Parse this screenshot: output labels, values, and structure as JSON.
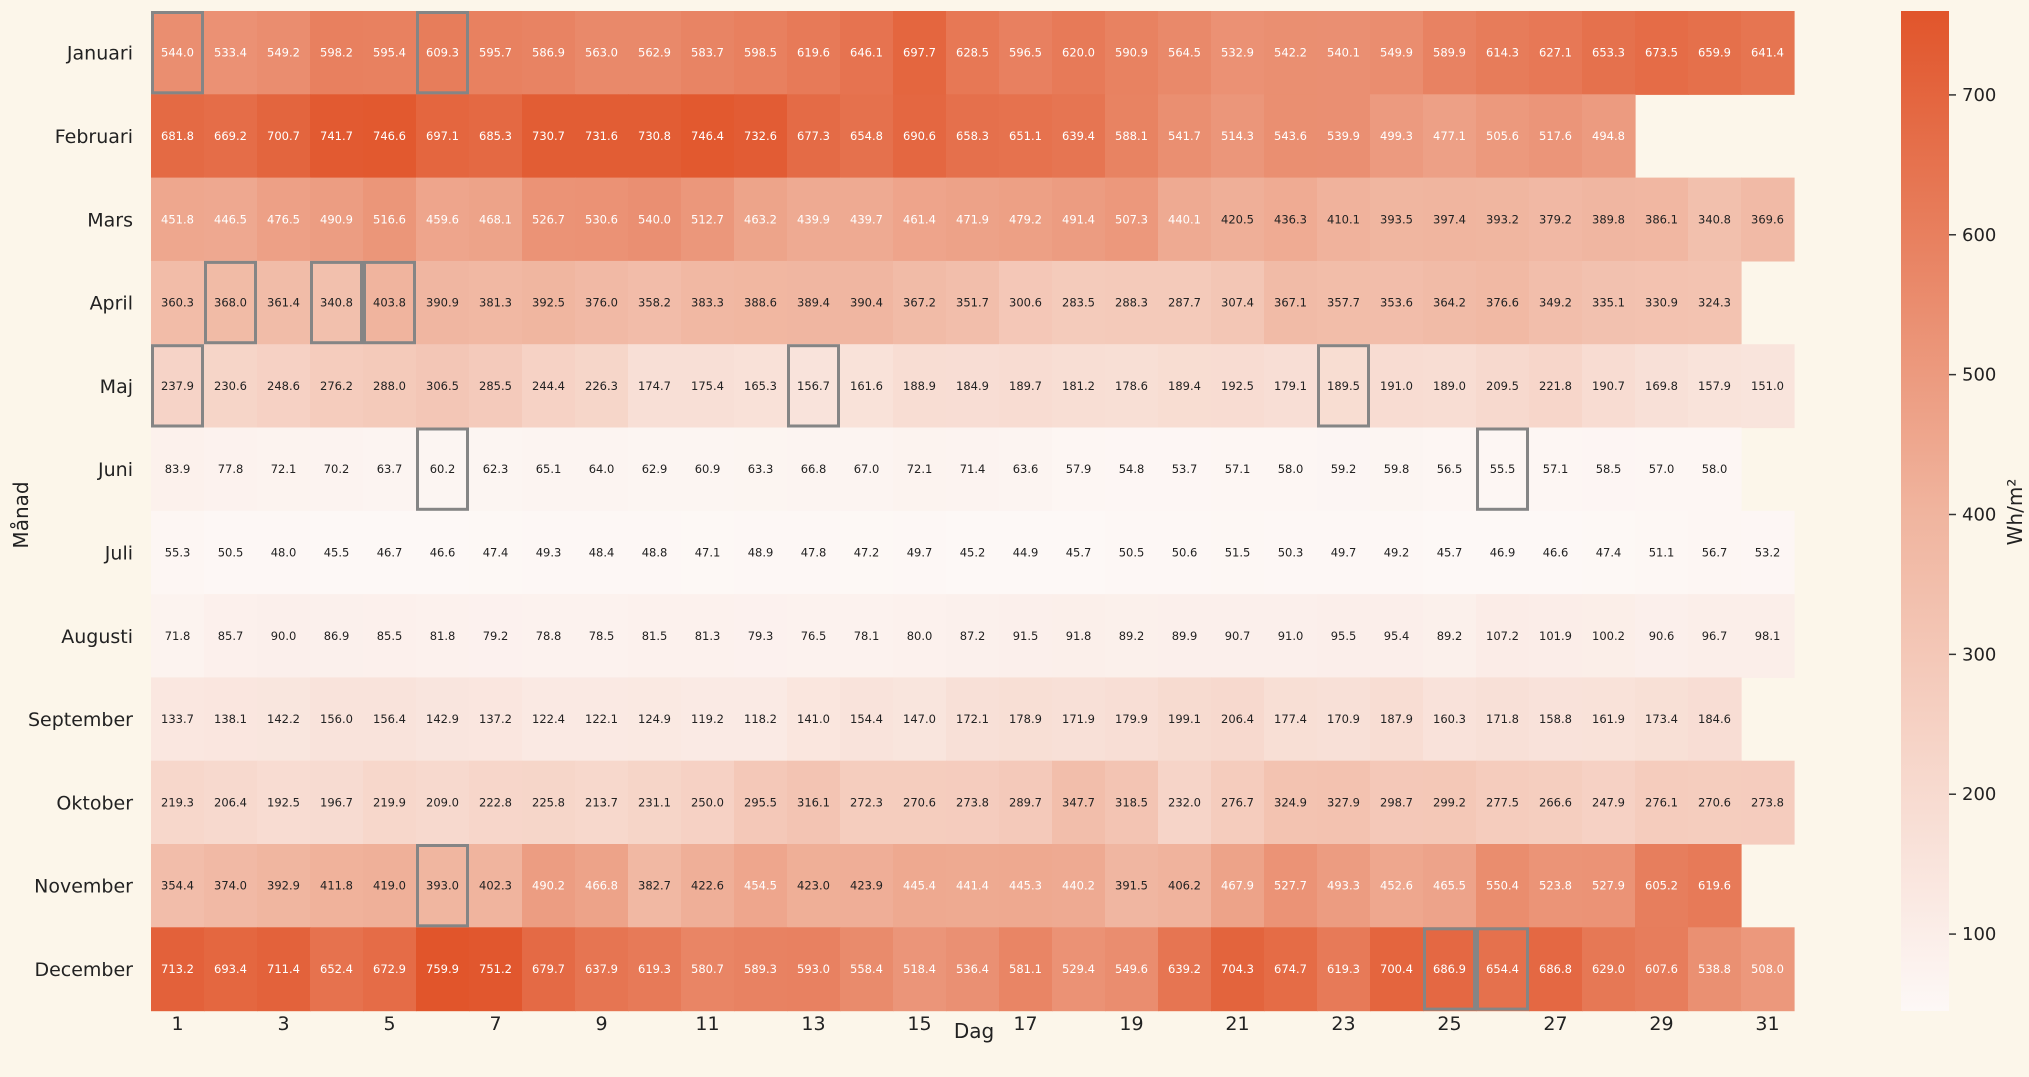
{
  "chart_data": {
    "type": "heatmap",
    "xlabel": "Dag",
    "ylabel": "Månad",
    "colorbar_label": "Wh/m²",
    "colorbar_range": [
      45,
      760
    ],
    "colorbar_ticks": [
      100,
      200,
      300,
      400,
      500,
      600,
      700
    ],
    "x_tick_labels": [
      "1",
      "3",
      "5",
      "7",
      "9",
      "11",
      "13",
      "15",
      "17",
      "19",
      "21",
      "23",
      "25",
      "27",
      "29",
      "31"
    ],
    "colormap": {
      "low": "#fdf8f6",
      "mid": "#f0b49e",
      "high": "#e1552b"
    },
    "days": [
      1,
      2,
      3,
      4,
      5,
      6,
      7,
      8,
      9,
      10,
      11,
      12,
      13,
      14,
      15,
      16,
      17,
      18,
      19,
      20,
      21,
      22,
      23,
      24,
      25,
      26,
      27,
      28,
      29,
      30,
      31
    ],
    "rows": [
      {
        "month": "Januari",
        "values": [
          544.0,
          533.4,
          549.2,
          598.2,
          595.4,
          609.3,
          595.7,
          586.9,
          563.0,
          562.9,
          583.7,
          598.5,
          619.6,
          646.1,
          697.7,
          628.5,
          596.5,
          620.0,
          590.9,
          564.5,
          532.9,
          542.2,
          540.1,
          549.9,
          589.9,
          614.3,
          627.1,
          653.3,
          673.5,
          659.9,
          641.4
        ],
        "highlighted_days": [
          1,
          6
        ]
      },
      {
        "month": "Februari",
        "values": [
          681.8,
          669.2,
          700.7,
          741.7,
          746.6,
          697.1,
          685.3,
          730.7,
          731.6,
          730.8,
          746.4,
          732.6,
          677.3,
          654.8,
          690.6,
          658.3,
          651.1,
          639.4,
          588.1,
          541.7,
          514.3,
          543.6,
          539.9,
          499.3,
          477.1,
          505.6,
          517.6,
          494.8
        ],
        "highlighted_days": []
      },
      {
        "month": "Mars",
        "values": [
          451.8,
          446.5,
          476.5,
          490.9,
          516.6,
          459.6,
          468.1,
          526.7,
          530.6,
          540.0,
          512.7,
          463.2,
          439.9,
          439.7,
          461.4,
          471.9,
          479.2,
          491.4,
          507.3,
          440.1,
          420.5,
          436.3,
          410.1,
          393.5,
          397.4,
          393.2,
          379.2,
          389.8,
          386.1,
          340.8,
          369.6
        ],
        "highlighted_days": []
      },
      {
        "month": "April",
        "values": [
          360.3,
          368.0,
          361.4,
          340.8,
          403.8,
          390.9,
          381.3,
          392.5,
          376.0,
          358.2,
          383.3,
          388.6,
          389.4,
          390.4,
          367.2,
          351.7,
          300.6,
          283.5,
          288.3,
          287.7,
          307.4,
          367.1,
          357.7,
          353.6,
          364.2,
          376.6,
          349.2,
          335.1,
          330.9,
          324.3
        ],
        "highlighted_days": [
          2,
          4,
          5
        ]
      },
      {
        "month": "Maj",
        "values": [
          237.9,
          230.6,
          248.6,
          276.2,
          288.0,
          306.5,
          285.5,
          244.4,
          226.3,
          174.7,
          175.4,
          165.3,
          156.7,
          161.6,
          188.9,
          184.9,
          189.7,
          181.2,
          178.6,
          189.4,
          192.5,
          179.1,
          189.5,
          191.0,
          189.0,
          209.5,
          221.8,
          190.7,
          169.8,
          157.9,
          151.0
        ],
        "highlighted_days": [
          1,
          13,
          23
        ]
      },
      {
        "month": "Juni",
        "values": [
          83.9,
          77.8,
          72.1,
          70.2,
          63.7,
          60.2,
          62.3,
          65.1,
          64.0,
          62.9,
          60.9,
          63.3,
          66.8,
          67.0,
          72.1,
          71.4,
          63.6,
          57.9,
          54.8,
          53.7,
          57.1,
          58.0,
          59.2,
          59.8,
          56.5,
          55.5,
          57.1,
          58.5,
          57.0,
          58.0
        ],
        "highlighted_days": [
          6,
          26
        ]
      },
      {
        "month": "Juli",
        "values": [
          55.3,
          50.5,
          48.0,
          45.5,
          46.7,
          46.6,
          47.4,
          49.3,
          48.4,
          48.8,
          47.1,
          48.9,
          47.8,
          47.2,
          49.7,
          45.2,
          44.9,
          45.7,
          50.5,
          50.6,
          51.5,
          50.3,
          49.7,
          49.2,
          45.7,
          46.9,
          46.6,
          47.4,
          51.1,
          56.7,
          53.2
        ],
        "highlighted_days": []
      },
      {
        "month": "Augusti",
        "values": [
          71.8,
          85.7,
          90.0,
          86.9,
          85.5,
          81.8,
          79.2,
          78.8,
          78.5,
          81.5,
          81.3,
          79.3,
          76.5,
          78.1,
          80.0,
          87.2,
          91.5,
          91.8,
          89.2,
          89.9,
          90.7,
          91.0,
          95.5,
          95.4,
          89.2,
          107.2,
          101.9,
          100.2,
          90.6,
          96.7,
          98.1
        ],
        "highlighted_days": []
      },
      {
        "month": "September",
        "values": [
          133.7,
          138.1,
          142.2,
          156.0,
          156.4,
          142.9,
          137.2,
          122.4,
          122.1,
          124.9,
          119.2,
          118.2,
          141.0,
          154.4,
          147.0,
          172.1,
          178.9,
          171.9,
          179.9,
          199.1,
          206.4,
          177.4,
          170.9,
          187.9,
          160.3,
          171.8,
          158.8,
          161.9,
          173.4,
          184.6
        ],
        "highlighted_days": []
      },
      {
        "month": "Oktober",
        "values": [
          219.3,
          206.4,
          192.5,
          196.7,
          219.9,
          209.0,
          222.8,
          225.8,
          213.7,
          231.1,
          250.0,
          295.5,
          316.1,
          272.3,
          270.6,
          273.8,
          289.7,
          347.7,
          318.5,
          232.0,
          276.7,
          324.9,
          327.9,
          298.7,
          299.2,
          277.5,
          266.6,
          247.9,
          276.1,
          270.6,
          273.8
        ],
        "highlighted_days": []
      },
      {
        "month": "November",
        "values": [
          354.4,
          374.0,
          392.9,
          411.8,
          419.0,
          393.0,
          402.3,
          490.2,
          466.8,
          382.7,
          422.6,
          454.5,
          423.0,
          423.9,
          445.4,
          441.4,
          445.3,
          440.2,
          391.5,
          406.2,
          467.9,
          527.7,
          493.3,
          452.6,
          465.5,
          550.4,
          523.8,
          527.9,
          605.2,
          619.6
        ],
        "highlighted_days": [
          6
        ]
      },
      {
        "month": "December",
        "values": [
          713.2,
          693.4,
          711.4,
          652.4,
          672.9,
          759.9,
          751.2,
          679.7,
          637.9,
          619.3,
          580.7,
          589.3,
          593.0,
          558.4,
          518.4,
          536.4,
          581.1,
          529.4,
          549.6,
          639.2,
          704.3,
          674.7,
          619.3,
          700.4,
          686.9,
          654.4,
          686.8,
          629.0,
          607.6,
          538.8,
          508.0
        ],
        "highlighted_days": [
          25,
          26
        ]
      }
    ]
  }
}
